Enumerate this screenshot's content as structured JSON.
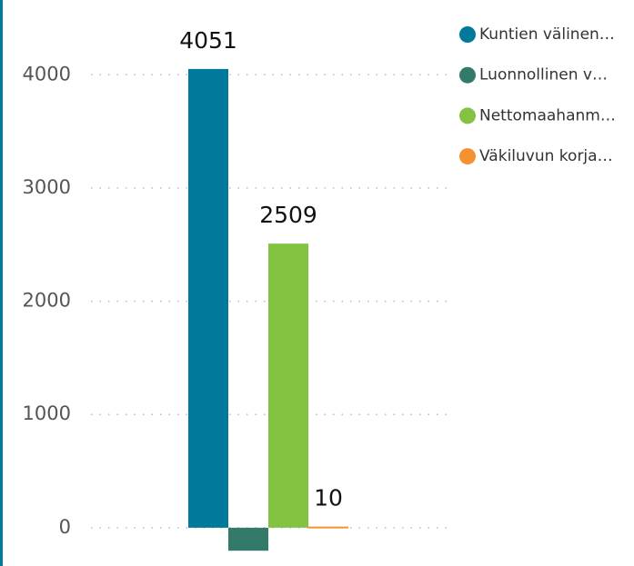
{
  "chart_data": {
    "type": "bar",
    "categories": [
      null
    ],
    "series": [
      {
        "name": "Kuntien välinen…",
        "color": "#00799a",
        "values": [
          4051
        ]
      },
      {
        "name": "Luonnollinen v…",
        "color": "#337a6b",
        "values": [
          -203
        ]
      },
      {
        "name": "Nettomaahanm…",
        "color": "#84c341",
        "values": [
          2509
        ]
      },
      {
        "name": "Väkiluvun korja…",
        "color": "#f5922f",
        "values": [
          10
        ]
      }
    ],
    "ylim": [
      -330,
      4660
    ],
    "yticks": [
      0,
      1000,
      2000,
      3000,
      4000
    ],
    "grid": true,
    "legend": "right"
  }
}
